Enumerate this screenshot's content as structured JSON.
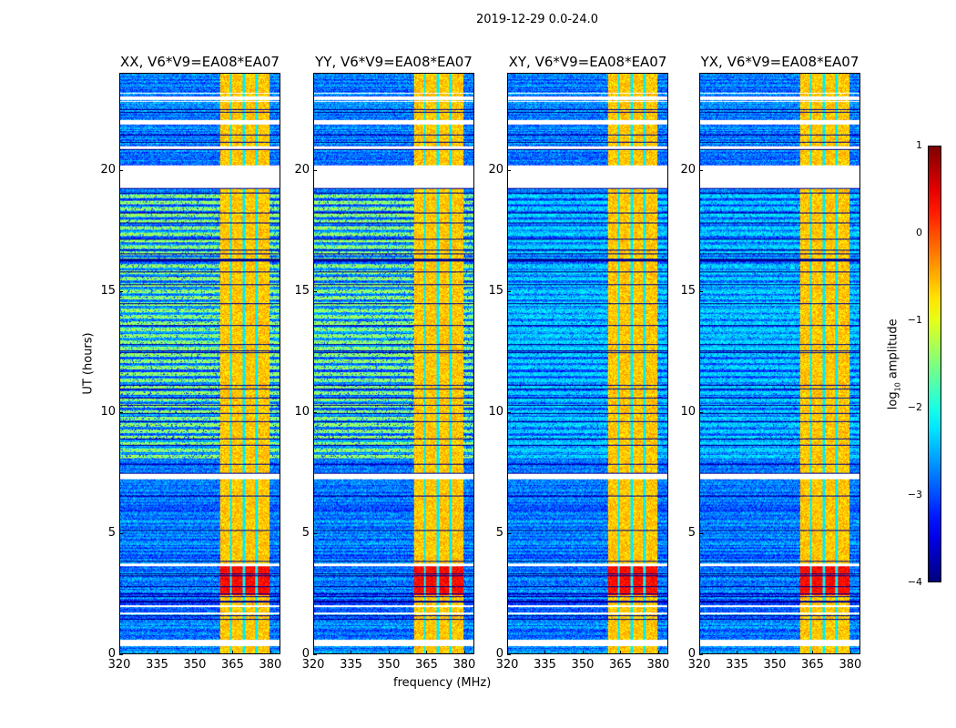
{
  "figure": {
    "suptitle": "2019-12-29 0.0-24.0",
    "xlabel": "frequency (MHz)",
    "ylabel": "UT (hours)"
  },
  "chart_data": {
    "type": "heatmap",
    "title": "2019-12-29 0.0-24.0",
    "xlabel": "frequency (MHz)",
    "ylabel": "UT (hours)",
    "xlim": [
      320,
      384
    ],
    "ylim": [
      0,
      24
    ],
    "xticks": [
      "320",
      "335",
      "350",
      "365",
      "380"
    ],
    "yticks": [
      "0",
      "5",
      "10",
      "15",
      "20"
    ],
    "panels": [
      {
        "title": "XX, V6*V9=EA08*EA07",
        "background_log_amp": -2.8,
        "green_period_hours": [
          8,
          19
        ],
        "green_level": -1.4
      },
      {
        "title": "YY, V6*V9=EA08*EA07",
        "background_log_amp": -2.8,
        "green_period_hours": [
          8,
          19
        ],
        "green_level": -1.4
      },
      {
        "title": "XY, V6*V9=EA08*EA07",
        "background_log_amp": -2.8,
        "green_period_hours": [
          8,
          19
        ],
        "green_level": -2.3
      },
      {
        "title": "YX, V6*V9=EA08*EA07",
        "background_log_amp": -2.8,
        "green_period_hours": [
          8,
          19
        ],
        "green_level": -2.3
      }
    ],
    "rfi_band_mhz": [
      360,
      380
    ],
    "rfi_band_level": -0.6,
    "rfi_subband_gaps_mhz": [
      364.5,
      369.8,
      374.9
    ],
    "strong_rfi_hours": [
      2.4,
      3.6
    ],
    "flagged_hours": [
      [
        0.3,
        0.55
      ],
      [
        1.6,
        1.7
      ],
      [
        1.9,
        2.0
      ],
      [
        3.6,
        3.7
      ],
      [
        7.2,
        7.45
      ],
      [
        19.25,
        20.2
      ],
      [
        20.9,
        21.0
      ],
      [
        21.9,
        22.1
      ],
      [
        22.9,
        23.05
      ]
    ],
    "colorbar": {
      "label_main": "log",
      "label_sub": "10",
      "label_rest": " amplitude",
      "range": [
        -4,
        1
      ],
      "ticks": [
        "1",
        "0",
        "−1",
        "−2",
        "−3",
        "−4"
      ],
      "colormap": "jet"
    }
  }
}
